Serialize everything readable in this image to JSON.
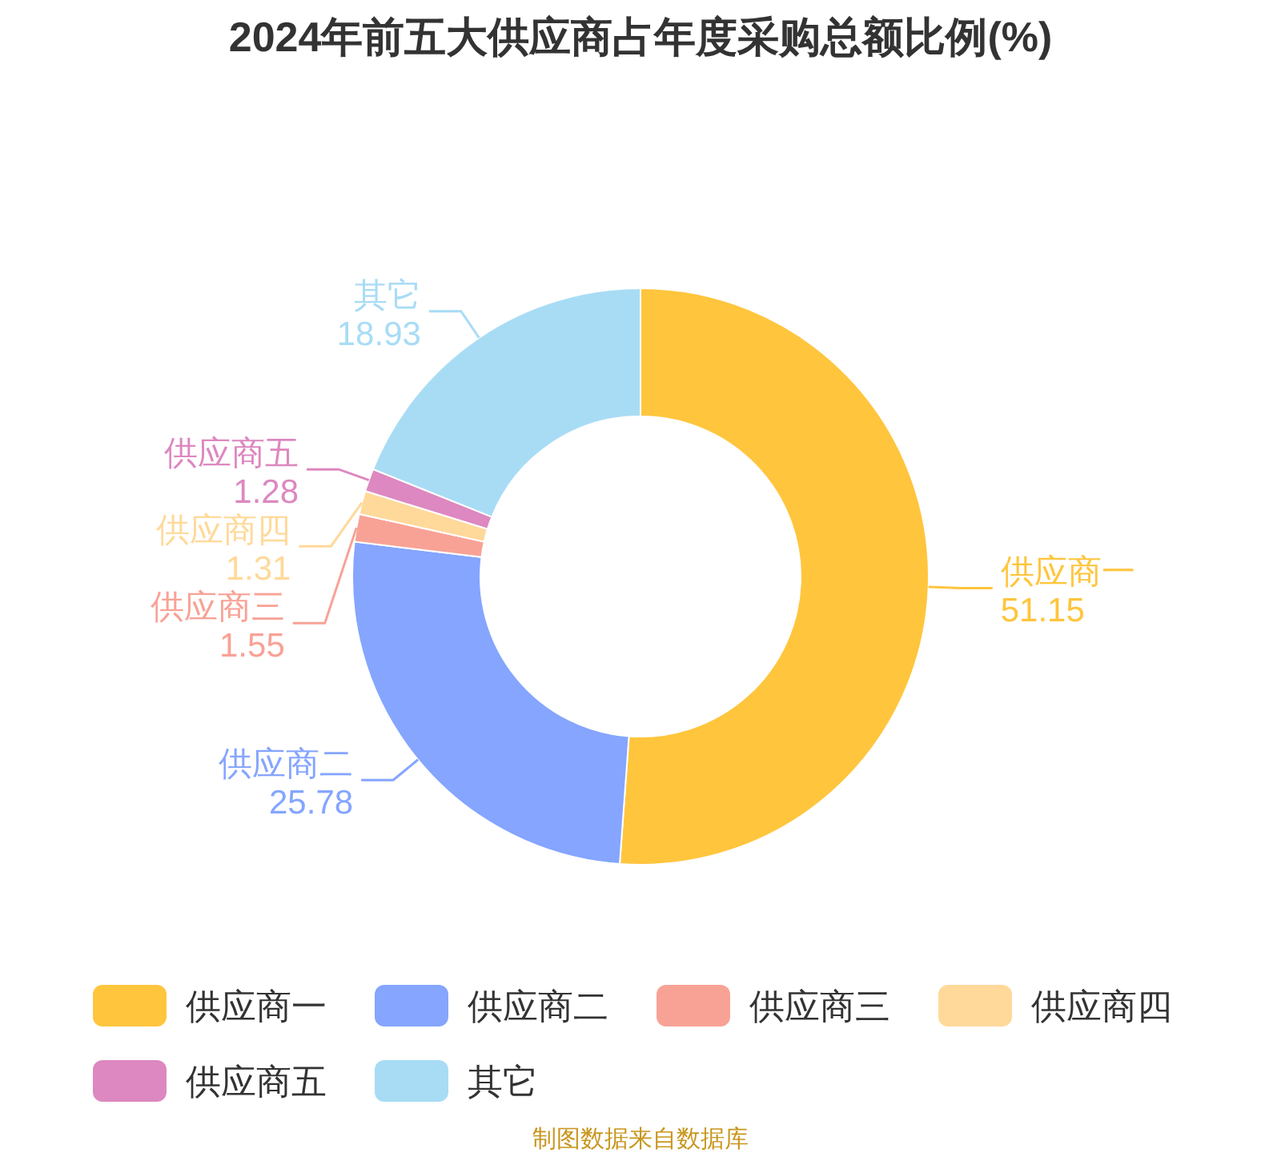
{
  "chart_data": {
    "type": "donut",
    "title": "2024年前五大供应商占年度采购总额比例(%)",
    "categories": [
      "供应商一",
      "供应商二",
      "供应商三",
      "供应商四",
      "供应商五",
      "其它"
    ],
    "values": [
      51.15,
      25.78,
      1.55,
      1.31,
      1.28,
      18.93
    ],
    "colors": [
      "#ffc53d",
      "#85a5ff",
      "#f8a296",
      "#ffd99a",
      "#dd88c0",
      "#a8dcf5"
    ],
    "data_labels": true,
    "legend": "bottom",
    "annotations": [
      "制图数据来自数据库"
    ]
  }
}
